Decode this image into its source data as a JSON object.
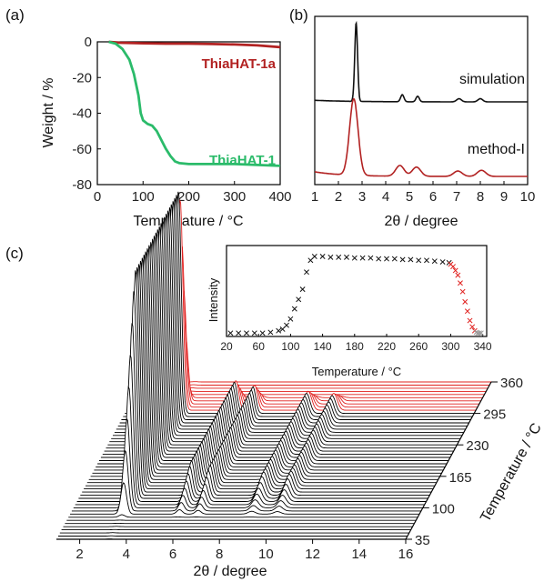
{
  "panels": {
    "a": {
      "label": "(a)",
      "chart_data": {
        "type": "line",
        "xlabel": "Temperature / °C",
        "ylabel": "Weight / %",
        "xlim": [
          0,
          400
        ],
        "ylim": [
          -80,
          0
        ],
        "xticks": [
          "0",
          "100",
          "200",
          "300",
          "400"
        ],
        "yticks": [
          "0",
          "-20",
          "-40",
          "-60",
          "-80"
        ],
        "series": [
          {
            "name": "ThiaHAT-1a",
            "color": "#b22222",
            "x": [
              25,
              50,
              100,
              150,
              200,
              250,
              300,
              350,
              400
            ],
            "y": [
              0,
              -0.5,
              -0.8,
              -1.0,
              -1.0,
              -1.2,
              -1.5,
              -2.0,
              -3.0
            ]
          },
          {
            "name": "ThiaHAT-1",
            "color": "#2bbb6a",
            "x": [
              25,
              40,
              55,
              70,
              80,
              90,
              95,
              100,
              110,
              120,
              130,
              140,
              150,
              160,
              170,
              180,
              200,
              250,
              300,
              350,
              400
            ],
            "y": [
              0,
              -1,
              -4,
              -10,
              -18,
              -30,
              -40,
              -44,
              -46,
              -47,
              -50,
              -55,
              -60,
              -64,
              -67,
              -68,
              -68.5,
              -68.5,
              -68.5,
              -69,
              -69.5
            ]
          }
        ]
      }
    },
    "b": {
      "label": "(b)",
      "chart_data": {
        "type": "line",
        "xlabel": "2θ / degree",
        "xlim": [
          1,
          10
        ],
        "xticks": [
          "1",
          "2",
          "3",
          "4",
          "5",
          "6",
          "7",
          "8",
          "9",
          "10"
        ],
        "series": [
          {
            "name": "simulation",
            "color": "#111111",
            "peaks": [
              [
                2.75,
                1.0,
                0.06
              ],
              [
                4.7,
                0.09,
                0.07
              ],
              [
                5.35,
                0.07,
                0.07
              ],
              [
                7.1,
                0.04,
                0.1
              ],
              [
                8.0,
                0.04,
                0.1
              ]
            ]
          },
          {
            "name": "method-I",
            "color": "#b22222",
            "peaks": [
              [
                2.65,
                1.0,
                0.18
              ],
              [
                4.6,
                0.14,
                0.18
              ],
              [
                5.3,
                0.12,
                0.18
              ],
              [
                7.05,
                0.07,
                0.18
              ],
              [
                8.05,
                0.08,
                0.18
              ]
            ]
          }
        ]
      }
    },
    "c": {
      "label": "(c)",
      "chart_data": {
        "type": "line",
        "xlabel": "2θ / degree",
        "zlabel": "Temperature / °C",
        "xlim": [
          1,
          16
        ],
        "xticks": [
          "2",
          "4",
          "6",
          "8",
          "10",
          "12",
          "14",
          "16"
        ],
        "zticks": [
          "35",
          "100",
          "165",
          "230",
          "295",
          "360"
        ],
        "zrange": [
          35,
          360
        ],
        "transition_temperature": 300,
        "colors": {
          "low": "#000000",
          "high": "#e0201e"
        },
        "peaks": [
          [
            3.3,
            1.0,
            0.12
          ],
          [
            5.7,
            0.14,
            0.12
          ],
          [
            6.5,
            0.12,
            0.12
          ],
          [
            8.8,
            0.09,
            0.15
          ],
          [
            9.9,
            0.08,
            0.15
          ]
        ]
      }
    },
    "inset": {
      "chart_data": {
        "type": "scatter",
        "xlabel": "Temperature / °C",
        "ylabel": "Intensity",
        "xlim": [
          20,
          345
        ],
        "xticks": [
          "20",
          "60",
          "100",
          "140",
          "180",
          "220",
          "260",
          "300",
          "340"
        ],
        "series": [
          {
            "name": "black",
            "color": "#111111",
            "x": [
              25,
              35,
              45,
              55,
              65,
              75,
              85,
              90,
              95,
              100,
              105,
              110,
              115,
              120,
              125,
              130,
              140,
              150,
              160,
              170,
              180,
              190,
              200,
              210,
              220,
              230,
              240,
              250,
              260,
              270,
              280,
              290,
              298
            ],
            "y": [
              0.02,
              0.02,
              0.02,
              0.02,
              0.02,
              0.03,
              0.05,
              0.07,
              0.12,
              0.2,
              0.33,
              0.45,
              0.58,
              0.8,
              0.95,
              1.0,
              1.0,
              0.99,
              0.99,
              0.99,
              0.98,
              0.98,
              0.98,
              0.97,
              0.97,
              0.97,
              0.96,
              0.96,
              0.95,
              0.95,
              0.94,
              0.93,
              0.92
            ]
          },
          {
            "name": "red",
            "color": "#e0201e",
            "x": [
              300,
              303,
              306,
              309,
              312,
              315,
              318,
              321,
              324,
              327,
              330
            ],
            "y": [
              0.9,
              0.87,
              0.82,
              0.76,
              0.66,
              0.55,
              0.42,
              0.3,
              0.18,
              0.1,
              0.05
            ]
          },
          {
            "name": "gray",
            "color": "#999999",
            "x": [
              332,
              334,
              336,
              338
            ],
            "y": [
              0.03,
              0.02,
              0.02,
              0.02
            ]
          }
        ]
      }
    }
  }
}
